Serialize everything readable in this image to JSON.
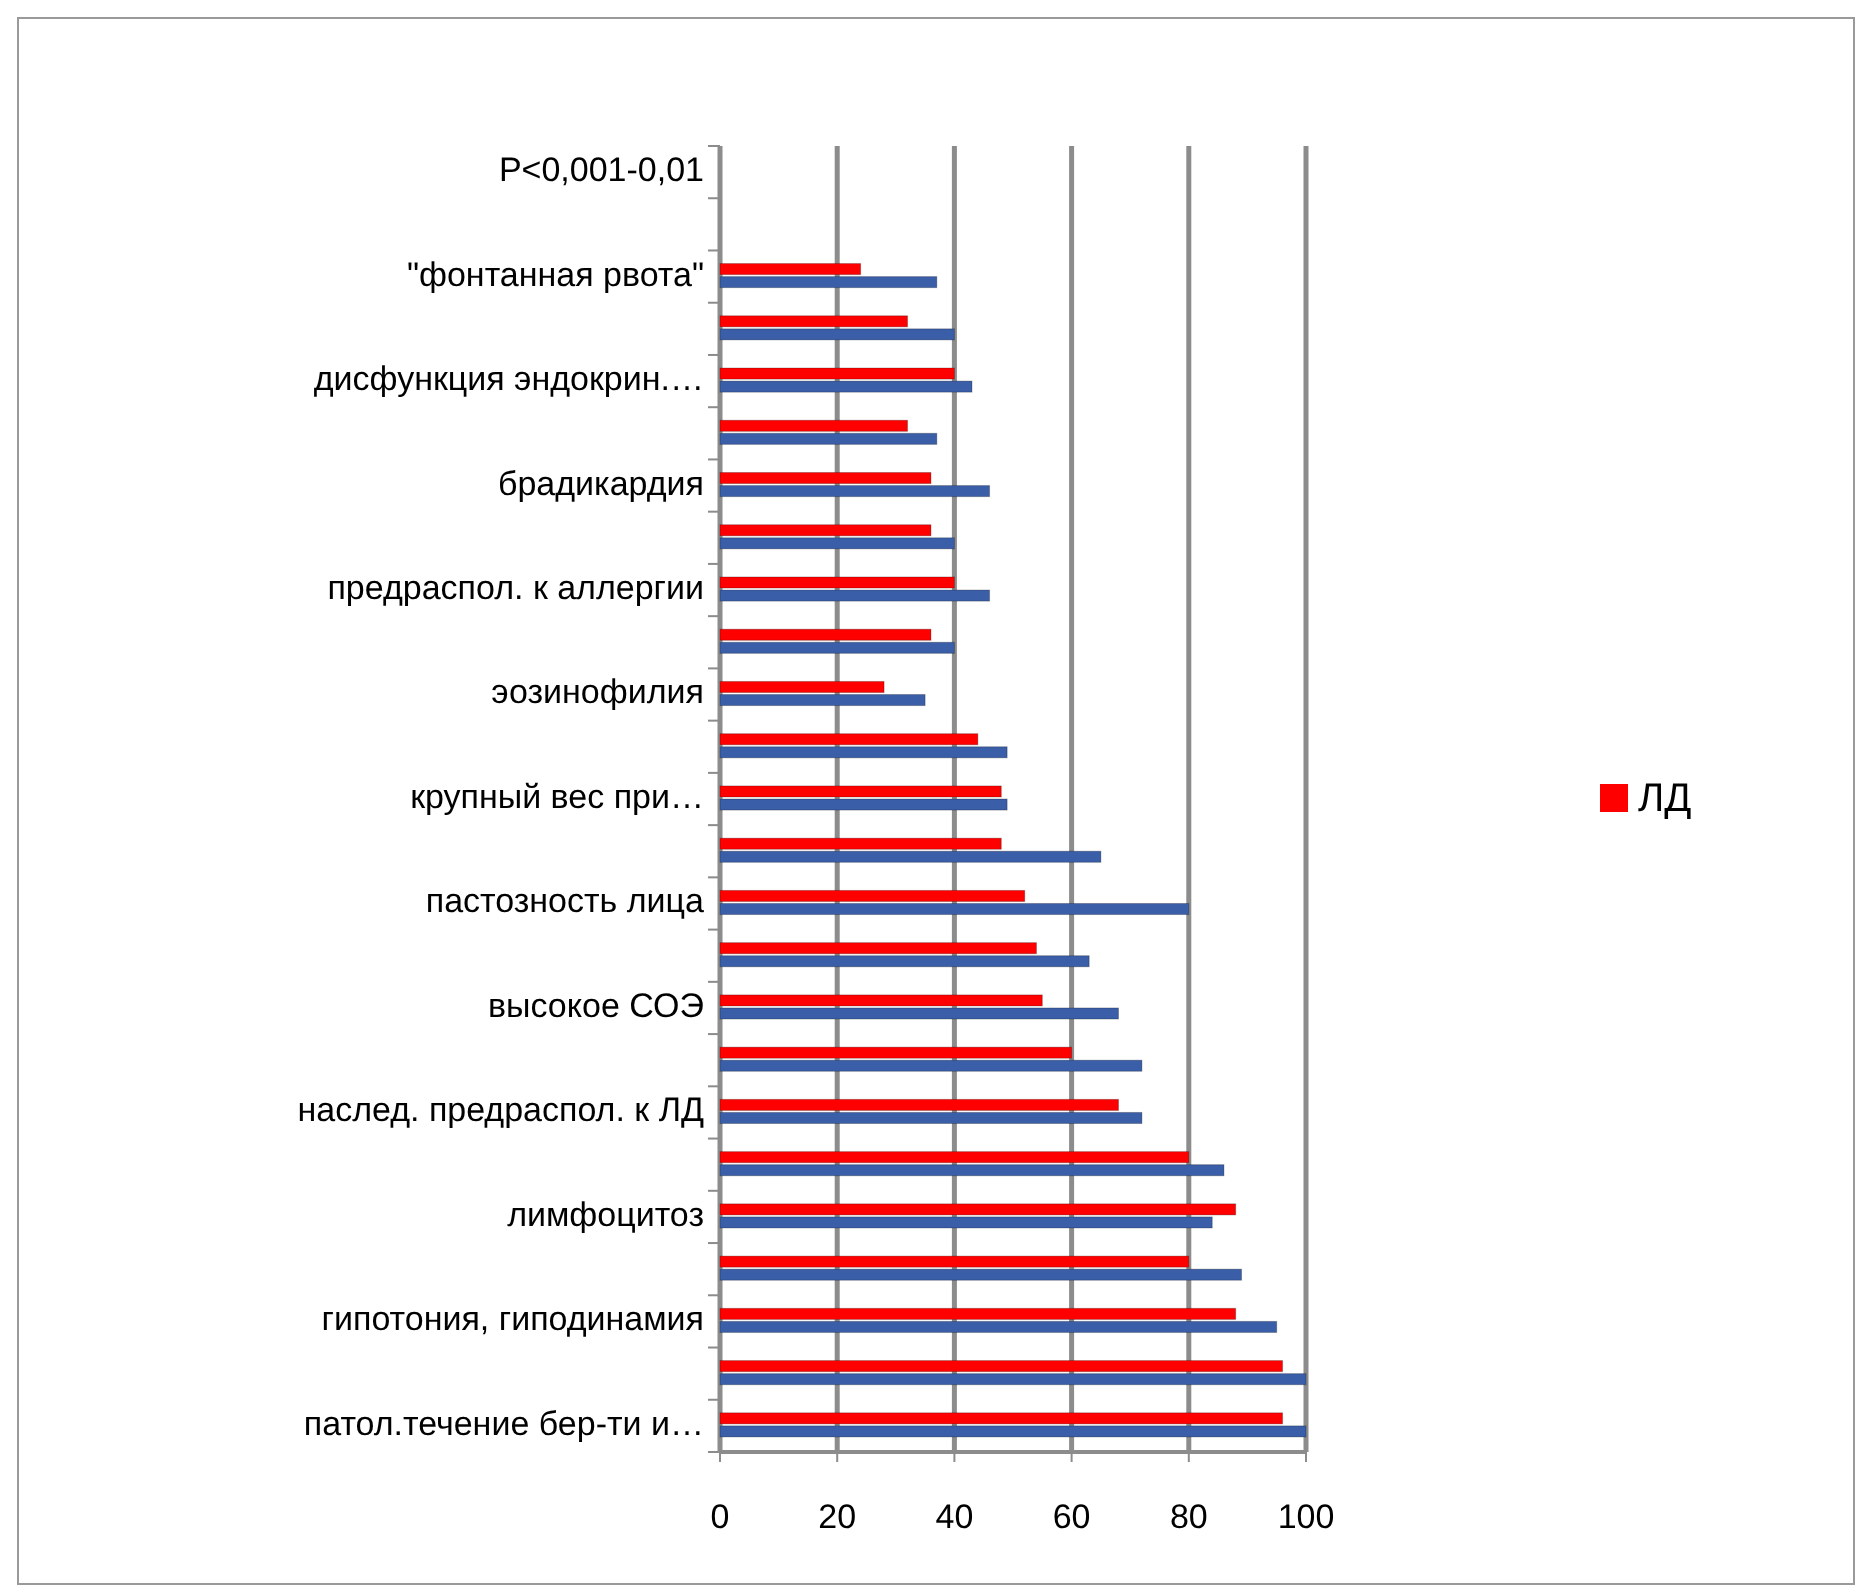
{
  "chart_data": {
    "type": "bar",
    "orientation": "horizontal",
    "categories": [
      "P<0,001-0,01",
      null,
      "\"фонтанная рвота\"",
      null,
      "дисфункция эндокрин.…",
      null,
      "брадикардия",
      null,
      "предраспол. к аллергии",
      null,
      "эозинофилия",
      null,
      "крупный вес при…",
      null,
      "пастозность лица",
      null,
      "высокое СОЭ",
      null,
      "наслед. предраспол. к ЛД",
      null,
      "лимфоцитоз",
      null,
      "гипотония, гиподинамия",
      null,
      "патол.течение бер-ти и…"
    ],
    "series": [
      {
        "name": "ЛД",
        "color": "#ff0000",
        "values": [
          null,
          null,
          24,
          32,
          40,
          32,
          36,
          36,
          40,
          36,
          28,
          44,
          48,
          48,
          52,
          54,
          55,
          60,
          68,
          80,
          88,
          80,
          88,
          96,
          96
        ]
      },
      {
        "color": "#3a5ea8",
        "values": [
          null,
          null,
          37,
          40,
          43,
          37,
          46,
          40,
          46,
          40,
          35,
          49,
          49,
          65,
          80,
          63,
          68,
          72,
          72,
          86,
          84,
          89,
          95,
          100,
          100
        ]
      }
    ],
    "xlim": [
      0,
      100
    ],
    "xticks": [
      0,
      20,
      40,
      60,
      80,
      100
    ],
    "grid": "x",
    "legend": "right"
  }
}
